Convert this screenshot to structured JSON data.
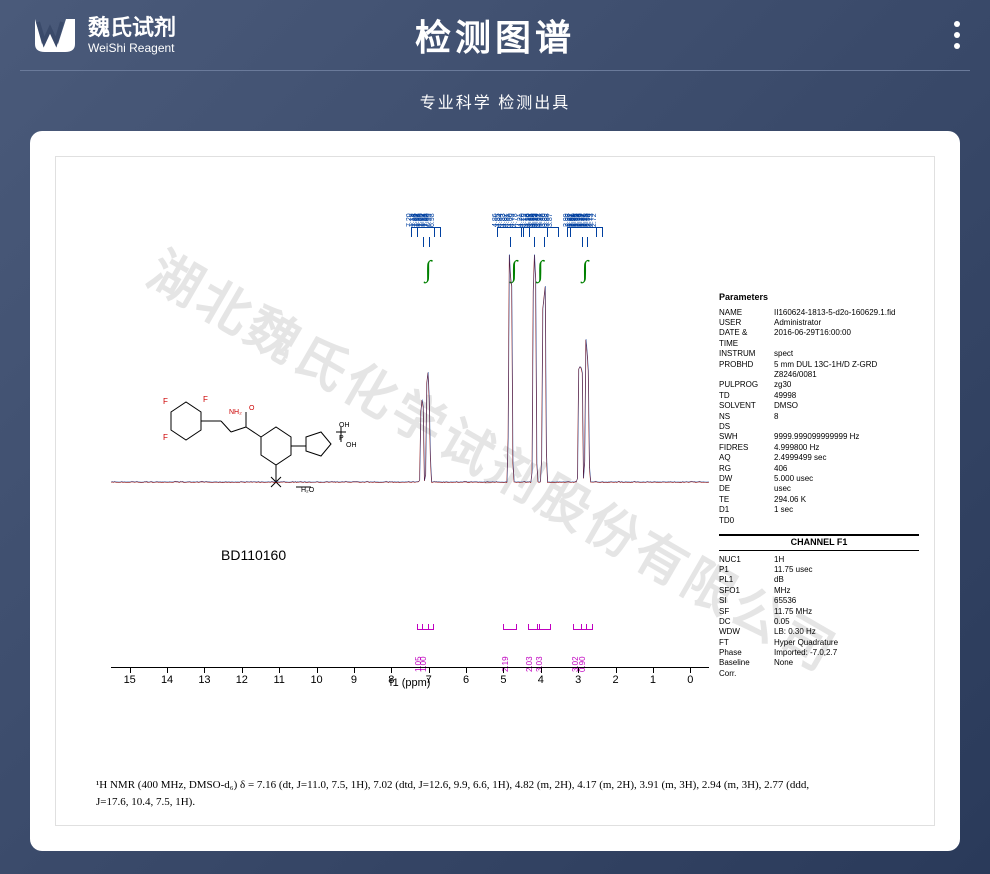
{
  "header": {
    "logo_cn": "魏氏试剂",
    "logo_en": "WeiShi Reagent",
    "title": "检测图谱",
    "subtitle": "专业科学  检测出具"
  },
  "molecule_id": "BD110160",
  "watermark_text": "湖北魏氏化学试剂股份有限公司",
  "nmr_caption_line1": "¹H NMR (400 MHz, DMSO-d₆) δ = 7.16 (dt, J=11.0, 7.5, 1H), 7.02 (dtd, J=12.6, 9.9, 6.6, 1H), 4.82 (m, 2H), 4.17 (m, 2H), 3.91 (m, 3H), 2.94 (m, 3H), 2.77 (ddd,",
  "nmr_caption_line2": "J=17.6, 10.4, 7.5, 1H).",
  "parameters": {
    "title": "Parameters",
    "rows": [
      {
        "k": "NAME",
        "v": "II160624-1813-5-d2o-160629.1.fid"
      },
      {
        "k": "USER",
        "v": "Administrator"
      },
      {
        "k": "DATE &",
        "v": "2016-06-29T16:00:00"
      },
      {
        "k": "TIME",
        "v": ""
      },
      {
        "k": "INSTRUM",
        "v": "spect"
      },
      {
        "k": "PROBHD",
        "v": "5 mm DUL 13C-1H/D Z-GRD Z8246/0081"
      },
      {
        "k": "PULPROG",
        "v": "zg30"
      },
      {
        "k": "TD",
        "v": "49998"
      },
      {
        "k": "SOLVENT",
        "v": "DMSO"
      },
      {
        "k": "NS",
        "v": "8"
      },
      {
        "k": "DS",
        "v": ""
      },
      {
        "k": "SWH",
        "v": "9999.999099999999 Hz"
      },
      {
        "k": "FIDRES",
        "v": "4.999800 Hz"
      },
      {
        "k": "AQ",
        "v": "2.4999499 sec"
      },
      {
        "k": "RG",
        "v": "406"
      },
      {
        "k": "DW",
        "v": "5.000 usec"
      },
      {
        "k": "DE",
        "v": "usec"
      },
      {
        "k": "TE",
        "v": "294.06 K"
      },
      {
        "k": "D1",
        "v": "1 sec"
      },
      {
        "k": "TD0",
        "v": ""
      }
    ],
    "channel_title": "CHANNEL F1",
    "channel_rows": [
      {
        "k": "NUC1",
        "v": "1H"
      },
      {
        "k": "P1",
        "v": "11.75 usec"
      },
      {
        "k": "PL1",
        "v": "dB"
      },
      {
        "k": "SFO1",
        "v": "MHz"
      },
      {
        "k": "SI",
        "v": "65536"
      },
      {
        "k": "SF",
        "v": "11.75 MHz"
      },
      {
        "k": "DC",
        "v": "0.05"
      },
      {
        "k": "WDW",
        "v": "LB: 0.30 Hz"
      },
      {
        "k": "FT",
        "v": "Hyper Quadrature"
      },
      {
        "k": "Phase",
        "v": "Imported: -7.0,2.7"
      },
      {
        "k": "Baseline",
        "v": "None"
      },
      {
        "k": "Corr.",
        "v": ""
      }
    ]
  },
  "xaxis": {
    "title": "f1  (ppm)",
    "ticks": [
      15,
      14,
      13,
      12,
      11,
      10,
      9,
      8,
      7,
      6,
      5,
      4,
      3,
      2,
      1,
      0
    ],
    "min": -0.5,
    "max": 15.5
  },
  "peaks": [
    {
      "ppm": 7.2,
      "intensity": 0.45,
      "color": "#8b0000"
    },
    {
      "ppm": 7.16,
      "intensity": 0.48,
      "color": "#8b0000"
    },
    {
      "ppm": 7.05,
      "intensity": 0.42,
      "color": "#0040a0"
    },
    {
      "ppm": 7.02,
      "intensity": 0.44,
      "color": "#8b0000"
    },
    {
      "ppm": 6.98,
      "intensity": 0.4,
      "color": "#0040a0"
    },
    {
      "ppm": 4.85,
      "intensity": 0.92,
      "color": "#8b0000"
    },
    {
      "ppm": 4.82,
      "intensity": 0.95,
      "color": "#0040a0"
    },
    {
      "ppm": 4.78,
      "intensity": 0.88,
      "color": "#8b0000"
    },
    {
      "ppm": 4.2,
      "intensity": 0.85,
      "color": "#8b0000"
    },
    {
      "ppm": 4.17,
      "intensity": 0.9,
      "color": "#0040a0"
    },
    {
      "ppm": 4.14,
      "intensity": 0.82,
      "color": "#8b0000"
    },
    {
      "ppm": 3.95,
      "intensity": 0.78,
      "color": "#8b0000"
    },
    {
      "ppm": 3.91,
      "intensity": 0.82,
      "color": "#0040a0"
    },
    {
      "ppm": 3.88,
      "intensity": 0.75,
      "color": "#8b0000"
    },
    {
      "ppm": 2.98,
      "intensity": 0.6,
      "color": "#8b0000"
    },
    {
      "ppm": 2.94,
      "intensity": 0.65,
      "color": "#0040a0"
    },
    {
      "ppm": 2.9,
      "intensity": 0.58,
      "color": "#8b0000"
    },
    {
      "ppm": 2.8,
      "intensity": 0.55,
      "color": "#8b0000"
    },
    {
      "ppm": 2.77,
      "intensity": 0.58,
      "color": "#0040a0"
    },
    {
      "ppm": 2.73,
      "intensity": 0.5,
      "color": "#8b0000"
    }
  ],
  "peak_label_clusters": [
    {
      "ppm": 7.15,
      "labels": [
        "7.20",
        "7.19",
        "7.18",
        "7.17",
        "7.16",
        "7.15",
        "7.14",
        "7.13"
      ]
    },
    {
      "ppm": 7.0,
      "labels": [
        "7.05",
        "7.04",
        "7.03",
        "7.02",
        "7.01",
        "7.00",
        "6.99",
        "6.98"
      ]
    },
    {
      "ppm": 4.82,
      "labels": [
        "4.86",
        "4.85",
        "4.84",
        "4.83",
        "4.82",
        "4.81",
        "4.80",
        "4.79",
        "4.78"
      ]
    },
    {
      "ppm": 4.17,
      "labels": [
        "4.21",
        "4.20",
        "4.19",
        "4.18",
        "4.17",
        "4.16",
        "4.15",
        "4.14",
        "4.13"
      ]
    },
    {
      "ppm": 3.91,
      "labels": [
        "3.96",
        "3.95",
        "3.94",
        "3.93",
        "3.92",
        "3.91",
        "3.90",
        "3.89",
        "3.88",
        "3.87"
      ]
    },
    {
      "ppm": 2.9,
      "labels": [
        "2.99",
        "2.98",
        "2.97",
        "2.96",
        "2.95",
        "2.94",
        "2.93",
        "2.92",
        "2.91",
        "2.90"
      ]
    },
    {
      "ppm": 2.77,
      "labels": [
        "2.82",
        "2.81",
        "2.80",
        "2.79",
        "2.78",
        "2.77",
        "2.76",
        "2.75",
        "2.74",
        "2.73",
        "2.72"
      ]
    }
  ],
  "integrals": [
    {
      "ppm": 7.16,
      "value": "1.05",
      "width": 12
    },
    {
      "ppm": 7.02,
      "value": "1.00",
      "width": 12
    },
    {
      "ppm": 4.82,
      "value": "2.19",
      "width": 14
    },
    {
      "ppm": 4.17,
      "value": "2.03",
      "width": 12
    },
    {
      "ppm": 3.91,
      "value": "3.03",
      "width": 14
    },
    {
      "ppm": 2.94,
      "value": "3.02",
      "width": 14
    },
    {
      "ppm": 2.77,
      "value": "0.90",
      "width": 12
    }
  ],
  "integral_curves": [
    {
      "ppm": 7.1
    },
    {
      "ppm": 4.8
    },
    {
      "ppm": 4.1
    },
    {
      "ppm": 2.9
    }
  ],
  "colors": {
    "bg_gradient_start": "#4a5a7a",
    "bg_gradient_end": "#2a3a5a",
    "peak_blue": "#0040a0",
    "peak_red": "#8b0000",
    "integral_label": "#c000c0",
    "integral_curve": "#008000",
    "watermark": "rgba(180,180,180,0.35)"
  }
}
